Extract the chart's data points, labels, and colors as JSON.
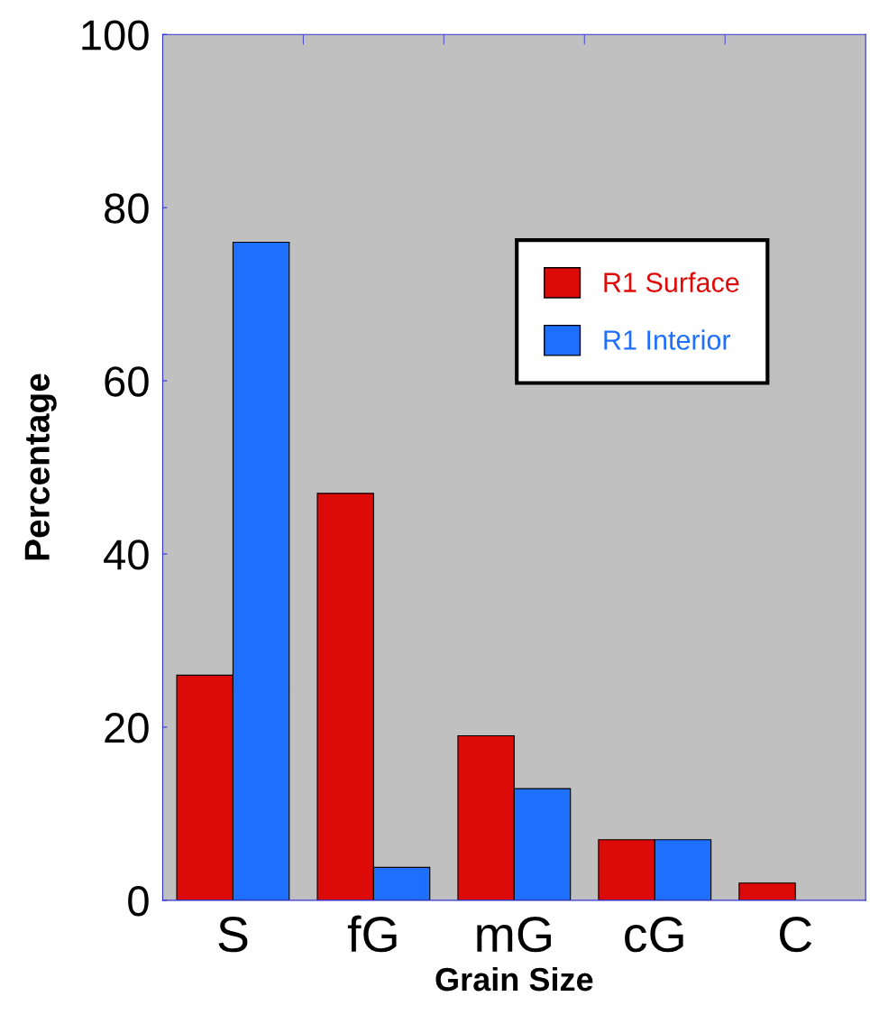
{
  "chart_data": {
    "type": "bar",
    "xlabel": "Grain Size",
    "ylabel": "Percentage",
    "categories": [
      "S",
      "fG",
      "mG",
      "cG",
      "C"
    ],
    "series": [
      {
        "name": "R1 Surface",
        "color": "#dd0a0a",
        "values": [
          26,
          47,
          19,
          7,
          2
        ]
      },
      {
        "name": "R1 Interior",
        "color": "#1f6fff",
        "values": [
          76,
          3.8,
          12.9,
          7,
          null
        ]
      }
    ],
    "ylim": [
      0,
      100
    ],
    "yticks": [
      0,
      20,
      40,
      60,
      80,
      100
    ],
    "grid": false,
    "legend": "right"
  }
}
